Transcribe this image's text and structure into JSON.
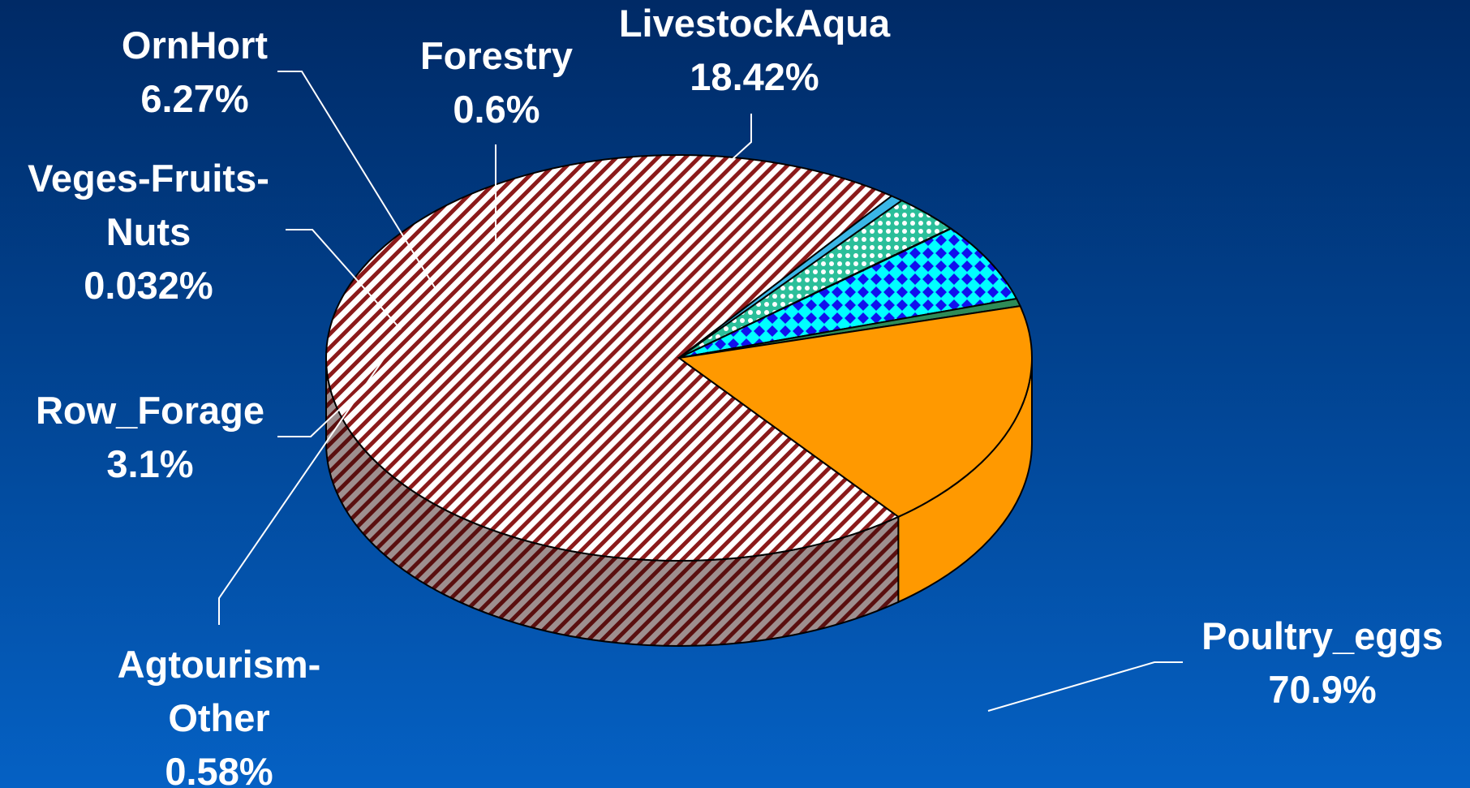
{
  "chart_data": {
    "type": "pie",
    "title": "",
    "slices": [
      {
        "label_lines": [
          "Poultry_eggs"
        ],
        "value": 70.9,
        "value_text": "70.9%",
        "color": "#8b1a1a",
        "pattern": "stripes"
      },
      {
        "label_lines": [
          "Agtourism-",
          "Other"
        ],
        "value": 0.58,
        "value_text": "0.58%",
        "color": "#3ab6e6",
        "pattern": "solid"
      },
      {
        "label_lines": [
          "Row_Forage"
        ],
        "value": 3.1,
        "value_text": "3.1%",
        "color": "#2bbf9a",
        "pattern": "dots"
      },
      {
        "label_lines": [
          "Veges-Fruits-",
          "Nuts"
        ],
        "value": 0.032,
        "value_text": "0.032%",
        "color": "#e8e8e8",
        "pattern": "solid"
      },
      {
        "label_lines": [
          "OrnHort"
        ],
        "value": 6.27,
        "value_text": "6.27%",
        "color": "#1010ee",
        "pattern": "diamonds"
      },
      {
        "label_lines": [
          "Forestry"
        ],
        "value": 0.6,
        "value_text": "0.6%",
        "color": "#2e8b57",
        "pattern": "solid"
      },
      {
        "label_lines": [
          "LivestockAqua"
        ],
        "value": 18.42,
        "value_text": "18.42%",
        "color": "#ff9900",
        "pattern": "solid"
      }
    ]
  }
}
